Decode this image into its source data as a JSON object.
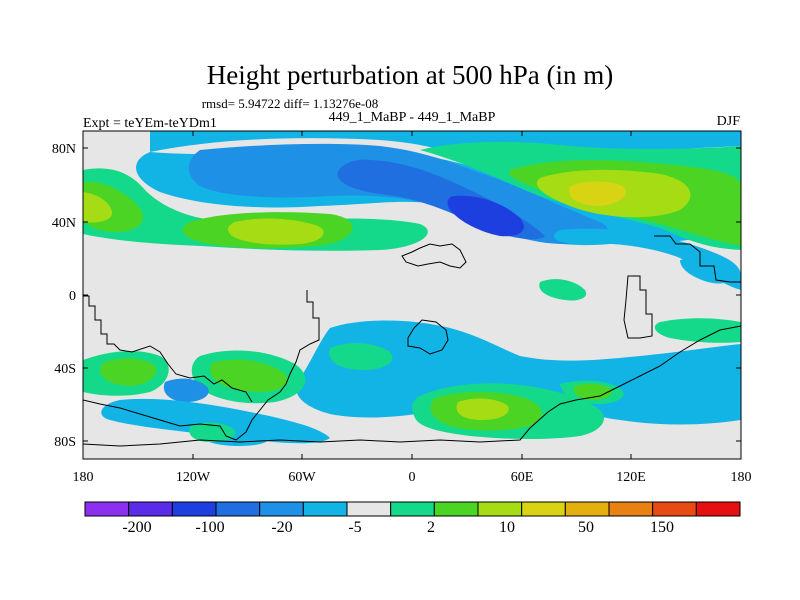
{
  "title": "Height perturbation at 500 hPa (in m)",
  "stats": "rmsd= 5.94722 diff= 1.13276e-08",
  "left_label": "Expt = teYEm-teYDm1",
  "center_label": "449_1_MaBP - 449_1_MaBP",
  "season": "DJF",
  "lat_ticks": [
    "80N",
    "40N",
    "0",
    "40S",
    "80S"
  ],
  "lon_ticks": [
    "180",
    "120W",
    "60W",
    "0",
    "60E",
    "120E",
    "180"
  ],
  "colorbar": {
    "labels": [
      "-200",
      "-100",
      "-20",
      "-5",
      "2",
      "10",
      "50",
      "150"
    ],
    "colors": [
      "#8b2ff0",
      "#5a2be8",
      "#1e3fe0",
      "#1f6fe0",
      "#1e90e6",
      "#12b4e6",
      "#e6e6e6",
      "#14d98a",
      "#4cd424",
      "#a6dc14",
      "#d8d414",
      "#e3b010",
      "#e88012",
      "#e84a14",
      "#e61010"
    ]
  },
  "palette": {
    "missing": "#e6e6e6",
    "blue_dark": "#1e3fe0",
    "blue_mid": "#1f6fe0",
    "blue_light": "#1e90e6",
    "cyan": "#12b4e6",
    "teal": "#14d98a",
    "green": "#4cd424",
    "lime": "#a6dc14",
    "yellow": "#d8d414",
    "orange": "#e3b010"
  }
}
